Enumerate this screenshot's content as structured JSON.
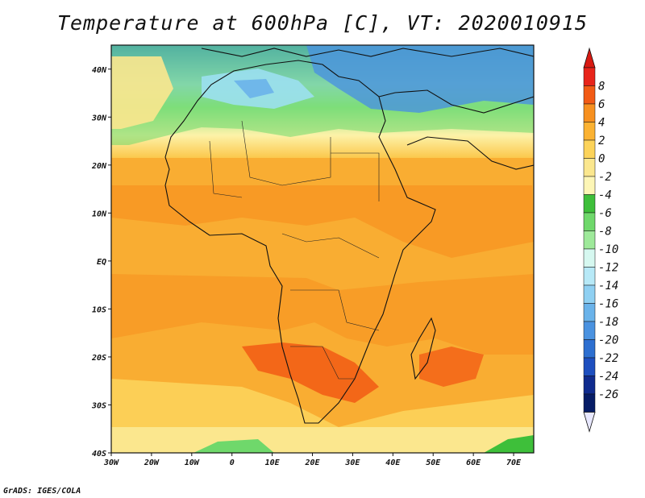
{
  "title": "Temperature at 600hPa [C], VT: 2020010915",
  "credit": "GrADS: IGES/COLA",
  "map": {
    "lon_range": [
      -30,
      75
    ],
    "lat_range": [
      -40,
      45
    ],
    "lon_ticks": [
      {
        "value": -30,
        "label": "30W"
      },
      {
        "value": -20,
        "label": "20W"
      },
      {
        "value": -10,
        "label": "10W"
      },
      {
        "value": 0,
        "label": "0"
      },
      {
        "value": 10,
        "label": "10E"
      },
      {
        "value": 20,
        "label": "20E"
      },
      {
        "value": 30,
        "label": "30E"
      },
      {
        "value": 40,
        "label": "40E"
      },
      {
        "value": 50,
        "label": "50E"
      },
      {
        "value": 60,
        "label": "60E"
      },
      {
        "value": 70,
        "label": "70E"
      }
    ],
    "lat_ticks": [
      {
        "value": 40,
        "label": "40N"
      },
      {
        "value": 30,
        "label": "30N"
      },
      {
        "value": 20,
        "label": "20N"
      },
      {
        "value": 10,
        "label": "10N"
      },
      {
        "value": 0,
        "label": "EQ"
      },
      {
        "value": -10,
        "label": "10S"
      },
      {
        "value": -20,
        "label": "20S"
      },
      {
        "value": -30,
        "label": "30S"
      },
      {
        "value": -40,
        "label": "40S"
      }
    ]
  },
  "colorbar": {
    "labels": [
      "8",
      "6",
      "4",
      "2",
      "0",
      "-2",
      "-4",
      "-6",
      "-8",
      "-10",
      "-12",
      "-14",
      "-16",
      "-18",
      "-20",
      "-22",
      "-24",
      "-26"
    ],
    "colors": [
      "#e8241a",
      "#f25a14",
      "#f7901f",
      "#fbb232",
      "#fcd35a",
      "#fbe78e",
      "#fdf6b6",
      "#3ebf3a",
      "#6fd86b",
      "#9ee99a",
      "#d6f8f0",
      "#b7e9f7",
      "#8fd0f2",
      "#6ab3ea",
      "#4a92e0",
      "#2d6fd0",
      "#1d4fbf",
      "#0f2b8e",
      "#061c66"
    ],
    "triangle_top": "#d81a12",
    "triangle_bottom": "#e8e8ff"
  }
}
